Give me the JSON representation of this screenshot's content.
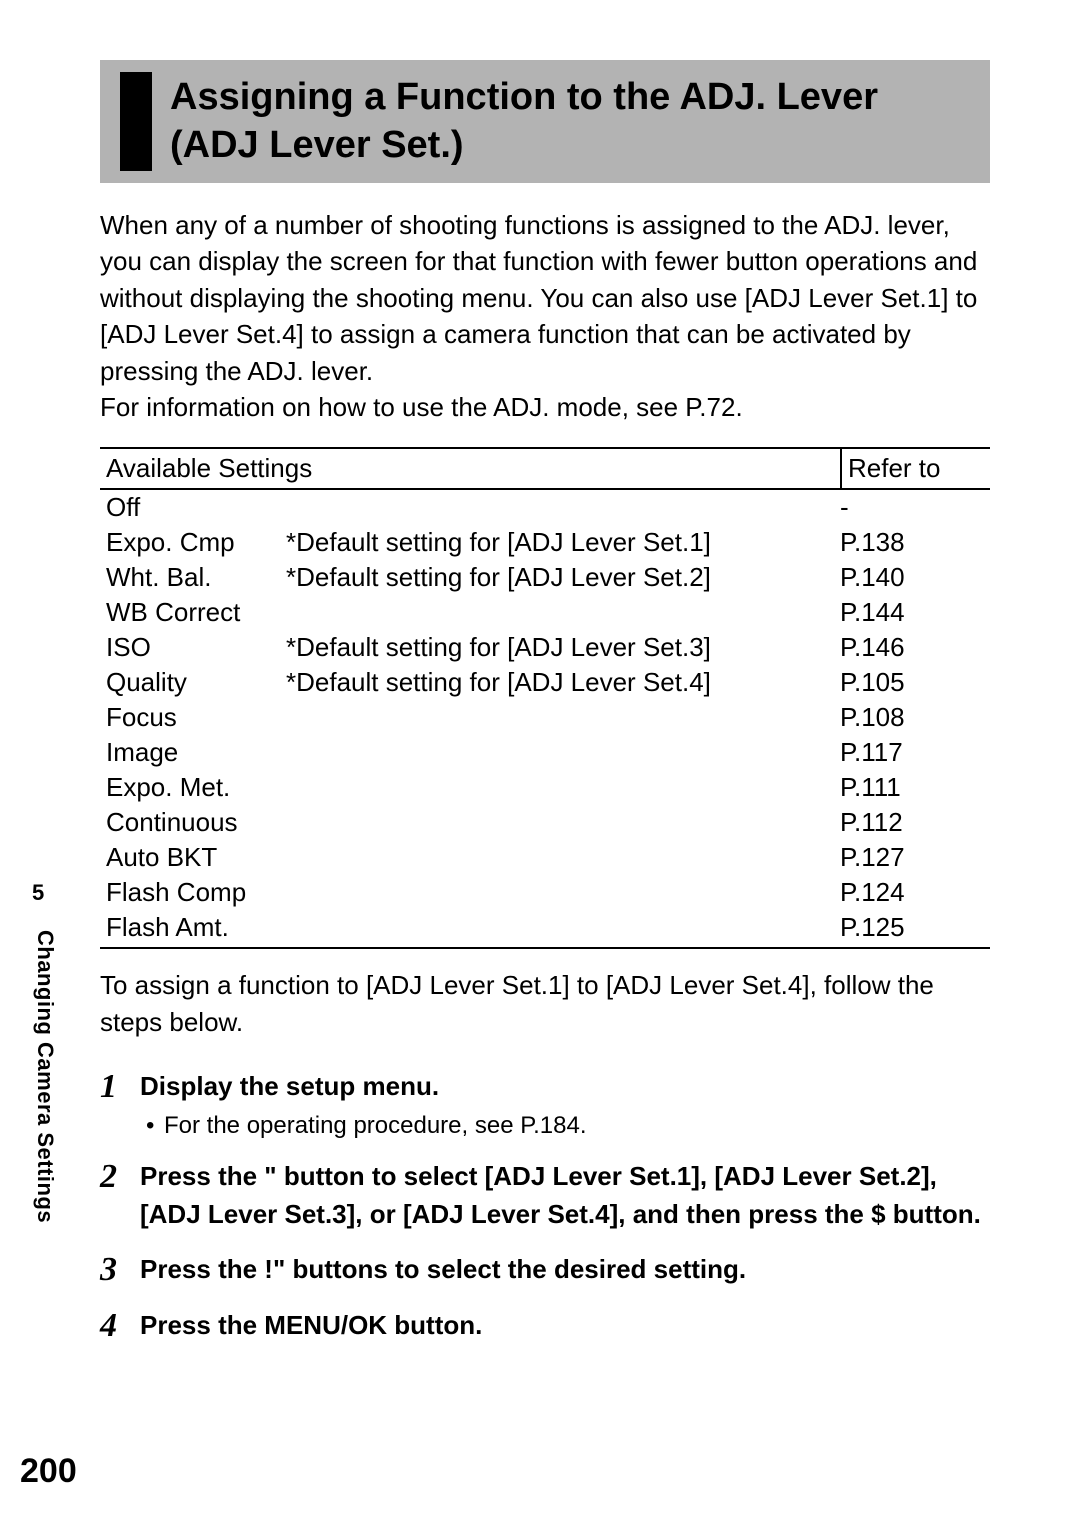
{
  "heading": "Assigning a Function to the ADJ. Lever (ADJ Lever Set.)",
  "intro": "When any of a number of shooting functions is assigned to the ADJ. lever, you can display the screen for that function with fewer button operations and without displaying the shooting menu. You can also use [ADJ Lever Set.1] to [ADJ Lever Set.4] to assign a camera function that can be activated by pressing the ADJ. lever.\nFor information on how to use the ADJ. mode, see P.72.",
  "table": {
    "header_left": "Available Settings",
    "header_right": "Refer to",
    "rows": [
      {
        "setting": "Off",
        "note": "",
        "ref": "-"
      },
      {
        "setting": "Expo. Cmp",
        "note": "*Default setting for [ADJ Lever Set.1]",
        "ref": "P.138"
      },
      {
        "setting": "Wht. Bal.",
        "note": "*Default setting for [ADJ Lever Set.2]",
        "ref": "P.140"
      },
      {
        "setting": "WB Correct",
        "note": "",
        "ref": "P.144"
      },
      {
        "setting": "ISO",
        "note": "*Default setting for [ADJ Lever Set.3]",
        "ref": "P.146"
      },
      {
        "setting": "Quality",
        "note": "*Default setting for [ADJ Lever Set.4]",
        "ref": "P.105"
      },
      {
        "setting": "Focus",
        "note": "",
        "ref": "P.108"
      },
      {
        "setting": "Image",
        "note": "",
        "ref": "P.117"
      },
      {
        "setting": "Expo. Met.",
        "note": "",
        "ref": "P.111"
      },
      {
        "setting": "Continuous",
        "note": "",
        "ref": "P.112"
      },
      {
        "setting": "Auto BKT",
        "note": "",
        "ref": "P.127"
      },
      {
        "setting": "Flash Comp",
        "note": "",
        "ref": "P.124"
      },
      {
        "setting": "Flash Amt.",
        "note": "",
        "ref": "P.125"
      }
    ]
  },
  "after_table": "To assign a function to [ADJ Lever Set.1] to [ADJ Lever Set.4], follow the steps below.",
  "steps": [
    {
      "num": "1",
      "title": "Display the setup menu.",
      "sub": "For the operating procedure, see P.184."
    },
    {
      "num": "2",
      "title": "Press the \"  button to select [ADJ Lever Set.1], [ADJ Lever Set.2], [ADJ Lever Set.3], or [ADJ Lever Set.4], and then press the $  button."
    },
    {
      "num": "3",
      "title": "Press the !\"   buttons to select the desired setting."
    },
    {
      "num": "4",
      "title": "Press the MENU/OK button."
    }
  ],
  "side": {
    "chapter_num": "5",
    "chapter_label": "Changing Camera Settings"
  },
  "page_number": "200",
  "colors": {
    "heading_bg": "#b3b3b3",
    "marker": "#000000",
    "text": "#000000",
    "page_bg": "#ffffff"
  },
  "fonts": {
    "heading_size_pt": 28,
    "body_size_pt": 20,
    "step_num_family": "Georgia italic"
  }
}
